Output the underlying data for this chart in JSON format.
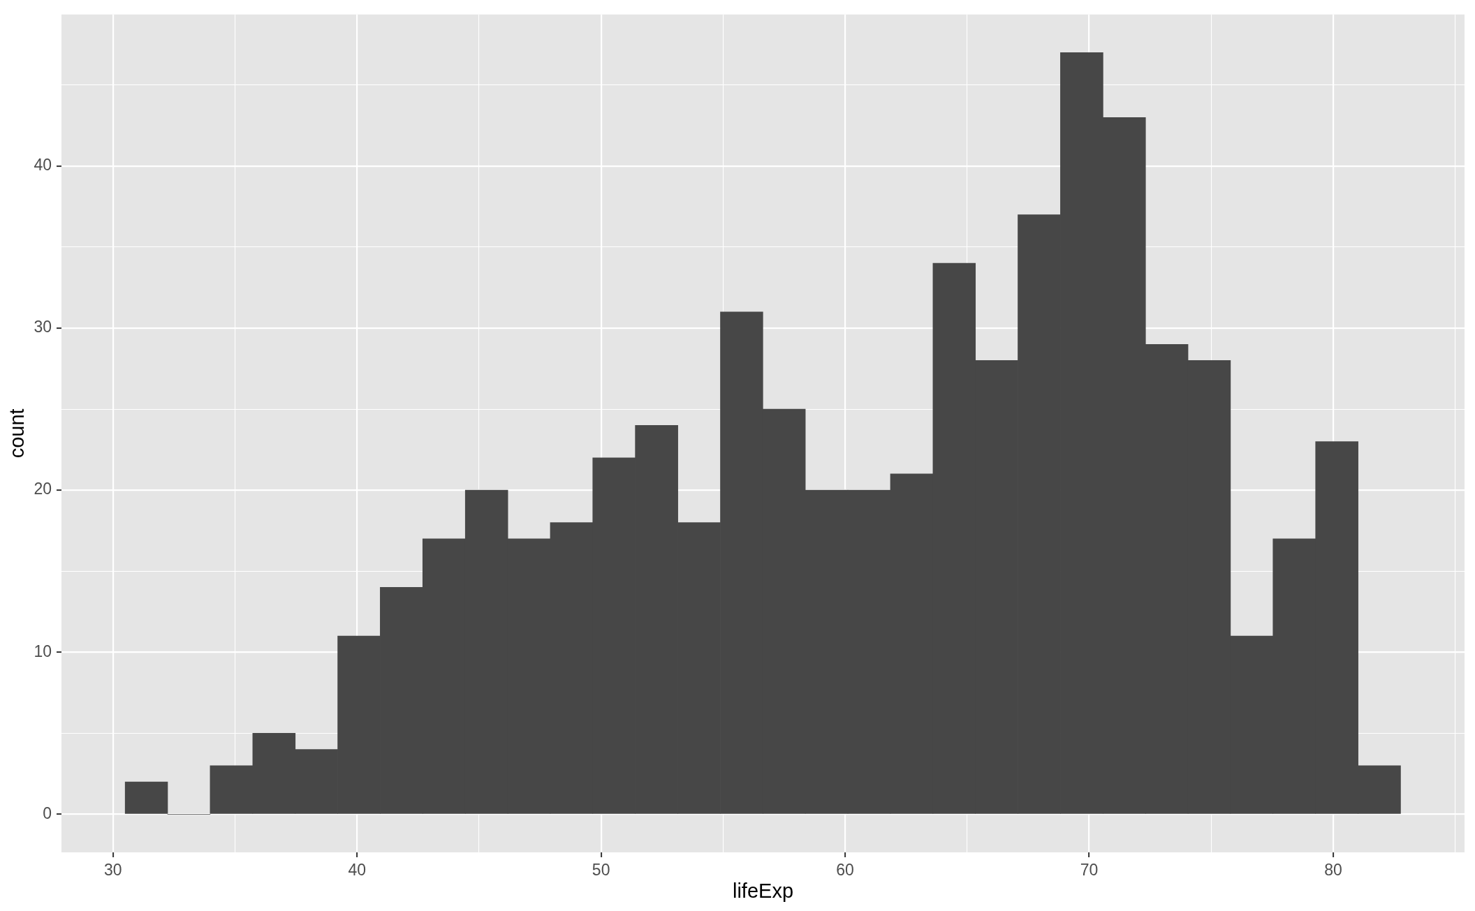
{
  "chart_data": {
    "type": "histogram",
    "xlabel": "lifeExp",
    "ylabel": "count",
    "bins": [
      30.5,
      32.24,
      33.98,
      35.73,
      37.47,
      39.21,
      40.95,
      42.69,
      44.44,
      46.18,
      47.92,
      49.66,
      51.4,
      53.15,
      54.89,
      56.63,
      58.37,
      60.11,
      61.86,
      63.6,
      65.34,
      67.08,
      68.82,
      70.57,
      72.31,
      74.05,
      75.79,
      77.53,
      79.28,
      81.02,
      82.76
    ],
    "values": [
      2,
      0,
      3,
      5,
      4,
      11,
      14,
      17,
      20,
      17,
      18,
      22,
      24,
      18,
      31,
      25,
      20,
      20,
      21,
      34,
      28,
      37,
      47,
      43,
      29,
      28,
      11,
      17,
      23,
      3
    ],
    "color": "#474747",
    "xlim": [
      27.89,
      85.38
    ],
    "ylim": [
      -2.35,
      49.35
    ],
    "xticks": [
      30,
      {
        "value": 35,
        "label": null
      },
      40,
      {
        "value": 45,
        "label": null
      },
      50,
      {
        "value": 55,
        "label": null
      },
      60,
      {
        "value": 65,
        "label": null
      },
      70,
      {
        "value": 75,
        "label": null
      },
      80,
      {
        "value": 85,
        "label": null
      }
    ],
    "yticks": [
      0,
      {
        "value": 5,
        "label": null
      },
      10,
      {
        "value": 15,
        "label": null
      },
      20,
      {
        "value": 25,
        "label": null
      },
      30,
      {
        "value": 35,
        "label": null
      },
      40,
      {
        "value": 45,
        "label": null
      }
    ],
    "grid": true
  }
}
